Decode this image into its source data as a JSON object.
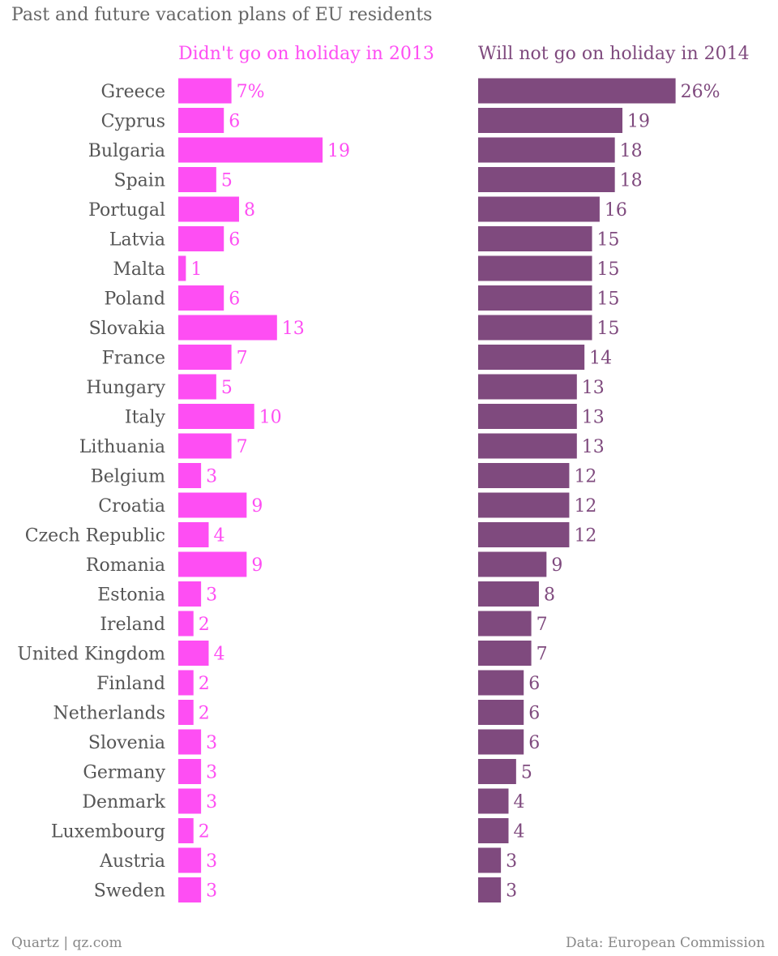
{
  "chart_data": {
    "type": "bar",
    "orientation": "horizontal",
    "title": "Past and future vacation plans of EU residents",
    "categories": [
      "Greece",
      "Cyprus",
      "Bulgaria",
      "Spain",
      "Portugal",
      "Latvia",
      "Malta",
      "Poland",
      "Slovakia",
      "France",
      "Hungary",
      "Italy",
      "Lithuania",
      "Belgium",
      "Croatia",
      "Czech Republic",
      "Romania",
      "Estonia",
      "Ireland",
      "United Kingdom",
      "Finland",
      "Netherlands",
      "Slovenia",
      "Germany",
      "Denmark",
      "Luxembourg",
      "Austria",
      "Sweden"
    ],
    "series": [
      {
        "name": "Didn't go on holiday in 2013",
        "color": "#fe4ef3",
        "unit": "%",
        "values": [
          7,
          6,
          19,
          5,
          8,
          6,
          1,
          6,
          13,
          7,
          5,
          10,
          7,
          3,
          9,
          4,
          9,
          3,
          2,
          4,
          2,
          2,
          3,
          3,
          3,
          2,
          3,
          3
        ]
      },
      {
        "name": "Will not go on holiday in 2014",
        "color": "#7f4a7e",
        "unit": "%",
        "values": [
          26,
          19,
          18,
          18,
          16,
          15,
          15,
          15,
          15,
          14,
          13,
          13,
          13,
          12,
          12,
          12,
          9,
          8,
          7,
          7,
          6,
          6,
          6,
          5,
          4,
          4,
          3,
          3
        ]
      }
    ],
    "grid": false
  },
  "footer": {
    "source": "Quartz | qz.com",
    "data": "Data: European Commission"
  }
}
